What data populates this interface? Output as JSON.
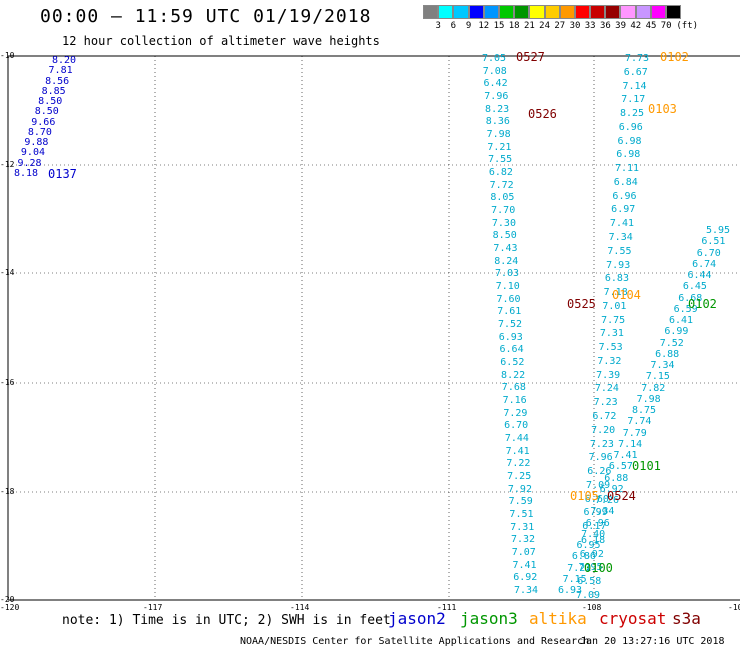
{
  "title": "00:00 – 11:59 UTC 01/19/2018",
  "subtitle": "12 hour collection of altimeter wave heights",
  "legend": {
    "colors": [
      "#808080",
      "#00ffff",
      "#00c8ff",
      "#0000ff",
      "#0096ff",
      "#00c800",
      "#009600",
      "#ffff00",
      "#ffcc00",
      "#ff9900",
      "#ff0000",
      "#c80000",
      "#960000",
      "#ff96ff",
      "#c896ff",
      "#ff00ff",
      "#000000"
    ],
    "labels": [
      "3",
      "6",
      "9",
      "12",
      "15",
      "18",
      "21",
      "24",
      "27",
      "30",
      "33",
      "36",
      "39",
      "42",
      "45",
      "70",
      "(ft)"
    ]
  },
  "axes": {
    "lat_labels": [
      "-10",
      "-12",
      "-14",
      "-16",
      "-18",
      "-20"
    ],
    "lon_labels": [
      "-120",
      "-117",
      "-114",
      "-111",
      "-108",
      "-10"
    ]
  },
  "annotation_colors": {
    "jason2": "#0000cc",
    "jason3": "#009600",
    "altika": "#ff9900",
    "cryosat": "#cc0000",
    "s3a": "#800000",
    "data": "#00aacc"
  },
  "pass_labels": [
    {
      "text": "0137",
      "sat": "jason2"
    },
    {
      "text": "0527",
      "sat": "s3a"
    },
    {
      "text": "0526",
      "sat": "s3a"
    },
    {
      "text": "0102",
      "sat": "altika"
    },
    {
      "text": "0103",
      "sat": "altika"
    },
    {
      "text": "0104",
      "sat": "altika"
    },
    {
      "text": "0102",
      "sat": "jason3"
    },
    {
      "text": "0525",
      "sat": "s3a"
    },
    {
      "text": "0101",
      "sat": "jason3"
    },
    {
      "text": "0105",
      "sat": "altika"
    },
    {
      "text": "0524",
      "sat": "s3a"
    },
    {
      "text": "0100",
      "sat": "jason3"
    }
  ],
  "tracks": [
    {
      "name": "jason2-0137",
      "color": "#0000cc",
      "values": [
        "8.20",
        "7.81",
        "8.56",
        "8.85",
        "8.50",
        "8.50",
        "9.66",
        "8.70",
        "9.88",
        "9.04",
        "9.28",
        "8.18"
      ]
    },
    {
      "name": "s3a-track",
      "color": "#00aacc",
      "values": [
        "7.05",
        "7.08",
        "6.42",
        "7.96",
        "8.23",
        "8.36",
        "7.98",
        "7.21",
        "7.55",
        "6.82",
        "7.72",
        "8.05",
        "7.70",
        "7.30",
        "8.50",
        "7.43",
        "8.24",
        "7.03",
        "7.10",
        "7.60",
        "7.61",
        "7.52",
        "6.93",
        "6.64",
        "6.52",
        "8.22",
        "7.68",
        "7.16",
        "7.29",
        "6.70",
        "7.44",
        "7.41",
        "7.22",
        "7.25",
        "7.92",
        "7.59",
        "7.51",
        "7.31",
        "7.32",
        "7.07",
        "7.41",
        "6.92",
        "7.34"
      ]
    },
    {
      "name": "altika-0102",
      "color": "#00aacc",
      "values": [
        "7.73",
        "6.67",
        "7.14",
        "7.17",
        "8.25",
        "6.96",
        "6.98",
        "6.98",
        "7.11",
        "6.84",
        "6.96",
        "6.97",
        "7.41",
        "7.34",
        "7.55",
        "7.93",
        "6.83",
        "7.18",
        "7.01",
        "7.75",
        "7.31",
        "7.53",
        "7.32",
        "7.39",
        "7.24",
        "7.23",
        "6.72",
        "7.20",
        "7.23",
        "7.96",
        "6.26",
        "7.09",
        "6.60",
        "6.99",
        "6.17",
        "6.18",
        "6.92",
        "7.95",
        "6.58",
        "7.09"
      ]
    },
    {
      "name": "jason3-0102",
      "color": "#00aacc",
      "values": [
        "5.95",
        "6.51",
        "6.70",
        "6.74",
        "6.44",
        "6.45",
        "6.68",
        "6.59",
        "6.41",
        "6.99",
        "7.52",
        "6.88",
        "7.34",
        "7.15",
        "7.82",
        "7.98",
        "8.75",
        "7.74",
        "7.79",
        "7.14",
        "7.41",
        "6.57",
        "6.88",
        "6.92",
        "7.26",
        "7.34",
        "6.96",
        "7.40",
        "6.95",
        "6.86",
        "7.21",
        "7.15",
        "6.93"
      ]
    }
  ],
  "note": "note: 1) Time is in UTC; 2) SWH is in feet",
  "satellites": [
    {
      "name": "jason2",
      "color": "#0000cc"
    },
    {
      "name": "jason3",
      "color": "#009600"
    },
    {
      "name": "altika",
      "color": "#ff9900"
    },
    {
      "name": "cryosat",
      "color": "#cc0000"
    },
    {
      "name": "s3a",
      "color": "#800000"
    }
  ],
  "footer_left": "NOAA/NESDIS Center for Satellite Applications and Research",
  "footer_right": "Jan 20 13:27:16 UTC 2018"
}
